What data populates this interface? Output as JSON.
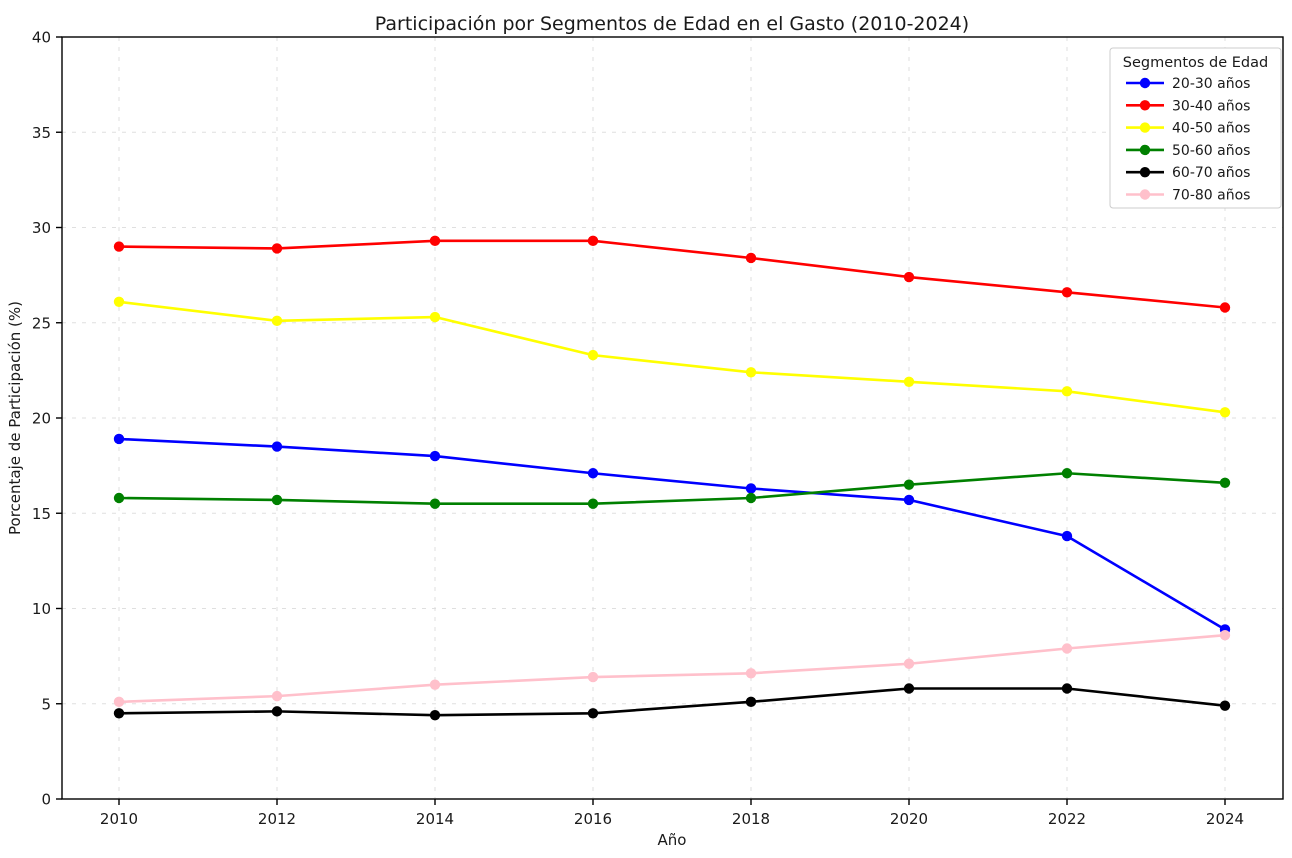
{
  "chart_data": {
    "type": "line",
    "title": "Participación por Segmentos de Edad en el Gasto (2010-2024)",
    "xlabel": "Año",
    "ylabel": "Porcentaje de Participación (%)",
    "categories": [
      2010,
      2012,
      2014,
      2016,
      2018,
      2020,
      2022,
      2024
    ],
    "series": [
      {
        "name": "20-30 años",
        "color": "#0000ff",
        "values": [
          18.9,
          18.5,
          18.0,
          17.1,
          16.3,
          15.7,
          13.8,
          8.9
        ]
      },
      {
        "name": "30-40 años",
        "color": "#ff0000",
        "values": [
          29.0,
          28.9,
          29.3,
          29.3,
          28.4,
          27.4,
          26.6,
          25.8
        ]
      },
      {
        "name": "40-50 años",
        "color": "#ffff00",
        "values": [
          26.1,
          25.1,
          25.3,
          23.3,
          22.4,
          21.9,
          21.4,
          20.3
        ]
      },
      {
        "name": "50-60 años",
        "color": "#008000",
        "values": [
          15.8,
          15.7,
          15.5,
          15.5,
          15.8,
          16.5,
          17.1,
          16.6
        ]
      },
      {
        "name": "60-70 años",
        "color": "#000000",
        "values": [
          4.5,
          4.6,
          4.4,
          4.5,
          5.1,
          5.8,
          5.8,
          4.9
        ]
      },
      {
        "name": "70-80 años",
        "color": "#ffc0cb",
        "values": [
          5.1,
          5.4,
          6.0,
          6.4,
          6.6,
          7.1,
          7.9,
          8.6
        ]
      }
    ],
    "ylim": [
      0,
      40
    ],
    "ytick_step": 5,
    "yticks": [
      0,
      5,
      10,
      15,
      20,
      25,
      30,
      35,
      40
    ],
    "grid": true,
    "grid_style": "dashed",
    "legend": {
      "title": "Segmentos de Edad",
      "position": "top-right"
    },
    "colors": {
      "background": "#ffffff",
      "axis": "#000000",
      "grid": "#dcdcdc",
      "text": "#1a1a1a",
      "legend_border": "#cccccc"
    }
  }
}
